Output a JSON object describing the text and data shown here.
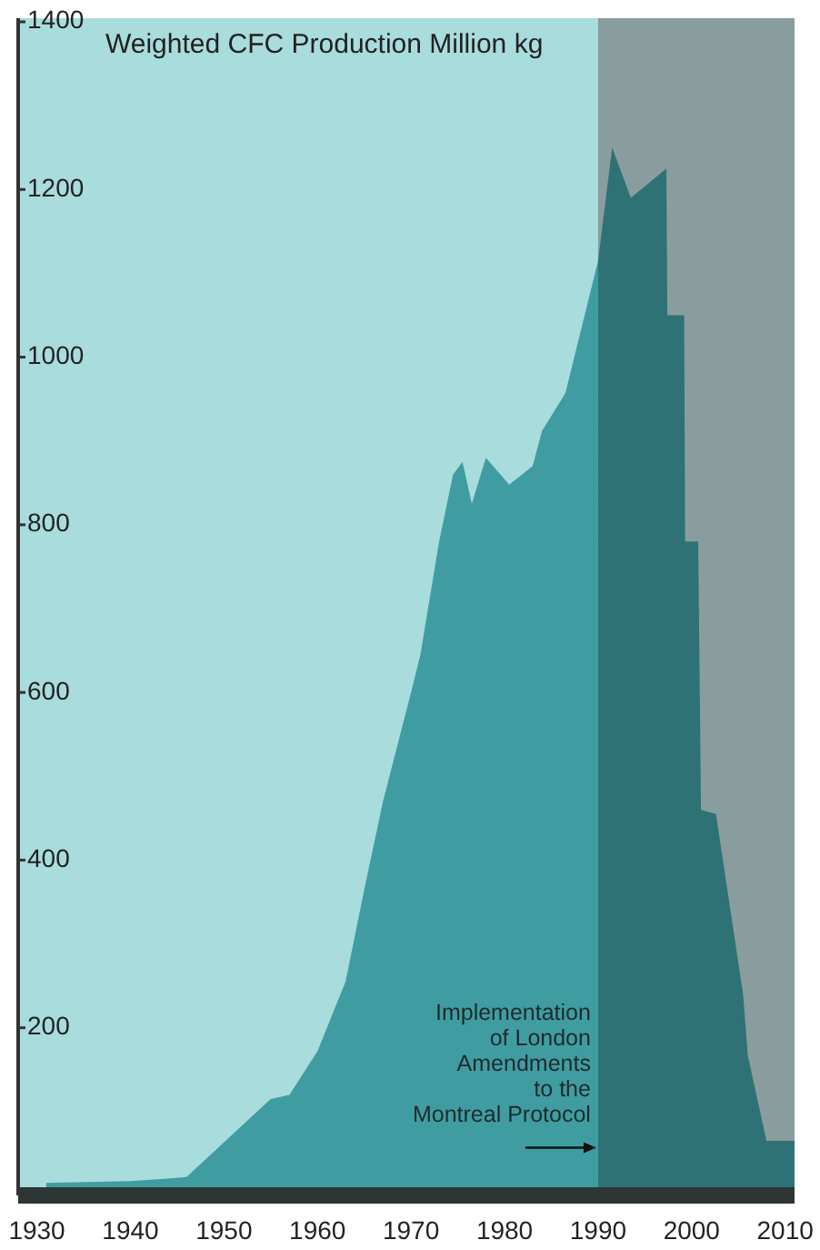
{
  "chart_data": {
    "type": "area",
    "title": "Weighted CFC Production Million kg",
    "series": [
      {
        "color": "#3f9da2",
        "x": [
          1931,
          1940,
          1944,
          1946,
          1955,
          1957,
          1960,
          1963,
          1965,
          1967,
          1970,
          1971,
          1973,
          1974.5,
          1975.5,
          1976.5,
          1978,
          1980.5,
          1983,
          1984,
          1986.5,
          1990
        ],
        "values": [
          15,
          17,
          20,
          22,
          115,
          120,
          172,
          255,
          365,
          470,
          600,
          645,
          780,
          860,
          875,
          825,
          880,
          848,
          870,
          912,
          957,
          1115
        ]
      },
      {
        "color": "#2e7275",
        "x": [
          1990,
          1991.5,
          1993.5,
          1997.3,
          1997.4,
          1999.2,
          1999.3,
          2000.7,
          2001,
          2002.6,
          2005.5,
          2006,
          2008,
          2011
        ],
        "values": [
          1115,
          1250,
          1190,
          1225,
          1050,
          1050,
          780,
          780,
          460,
          455,
          240,
          167,
          65,
          65
        ]
      }
    ],
    "xlim": [
      1928,
      2011
    ],
    "xticks": [
      1930,
      1940,
      1950,
      1960,
      1970,
      1980,
      1990,
      2000,
      2010
    ],
    "ylim": [
      0,
      1400
    ],
    "yticks": [
      200,
      400,
      600,
      800,
      1000,
      1200,
      1400
    ],
    "bands": [
      {
        "axis": "x",
        "from": 1990,
        "to": 2011,
        "color": "#8a9d9e"
      }
    ],
    "annotations": [
      {
        "text": "Implementation\nof London\nAmendments\nto the\nMontreal Protocol",
        "x": 1990,
        "y": 57
      }
    ],
    "tick_labels": true
  }
}
